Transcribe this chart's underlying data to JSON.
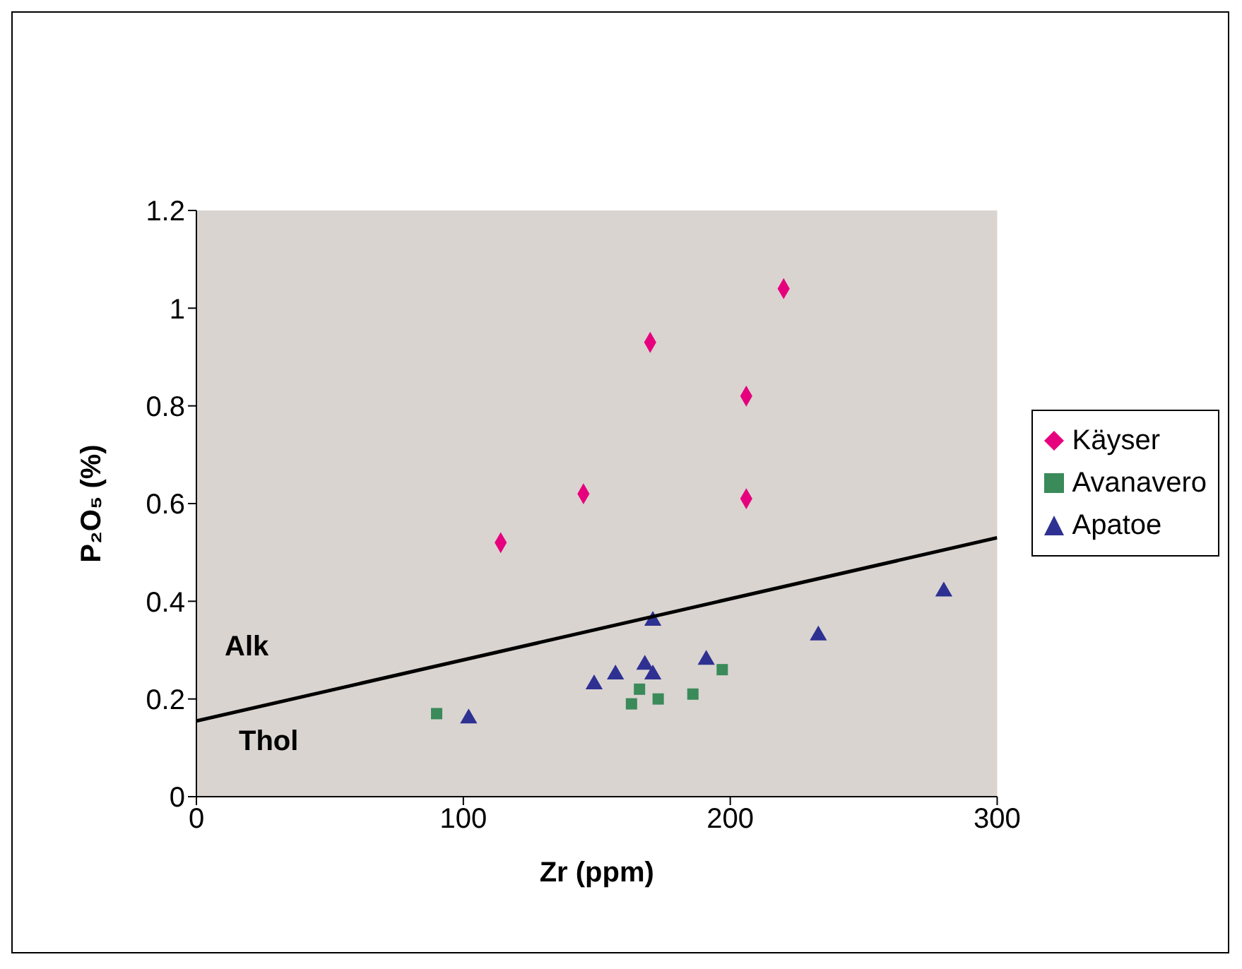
{
  "chart_data": {
    "type": "scatter",
    "xlabel": "Zr (ppm)",
    "ylabel": "P₂O₅ (%)",
    "xlim": [
      0,
      300
    ],
    "xticks": [
      0,
      100,
      200,
      300
    ],
    "ylim": [
      0,
      1.2
    ],
    "yticks": [
      0,
      0.2,
      0.4,
      0.6,
      0.8,
      1,
      1.2
    ],
    "legend": "right",
    "annotations": [
      "Alk",
      "Thol"
    ],
    "series": [
      {
        "name": "Käyser",
        "color": "#e6007e",
        "marker": "diamond",
        "x": [
          114,
          145,
          170,
          206,
          206,
          220
        ],
        "values": [
          0.52,
          0.62,
          0.93,
          0.82,
          0.61,
          1.04
        ]
      },
      {
        "name": "Avanavero",
        "color": "#3a8a5a",
        "marker": "square",
        "x": [
          90,
          163,
          166,
          173,
          186,
          197
        ],
        "values": [
          0.17,
          0.19,
          0.22,
          0.2,
          0.21,
          0.26
        ]
      },
      {
        "name": "Apatoe",
        "color": "#2e3192",
        "marker": "triangle",
        "x": [
          102,
          149,
          157,
          168,
          171,
          171,
          191,
          233,
          280
        ],
        "values": [
          0.16,
          0.23,
          0.25,
          0.27,
          0.25,
          0.36,
          0.28,
          0.33,
          0.42
        ]
      },
      {
        "type": "line",
        "color": "#000000",
        "marker": "none",
        "x": [
          0,
          300
        ],
        "values": [
          0.155,
          0.53
        ]
      }
    ]
  }
}
